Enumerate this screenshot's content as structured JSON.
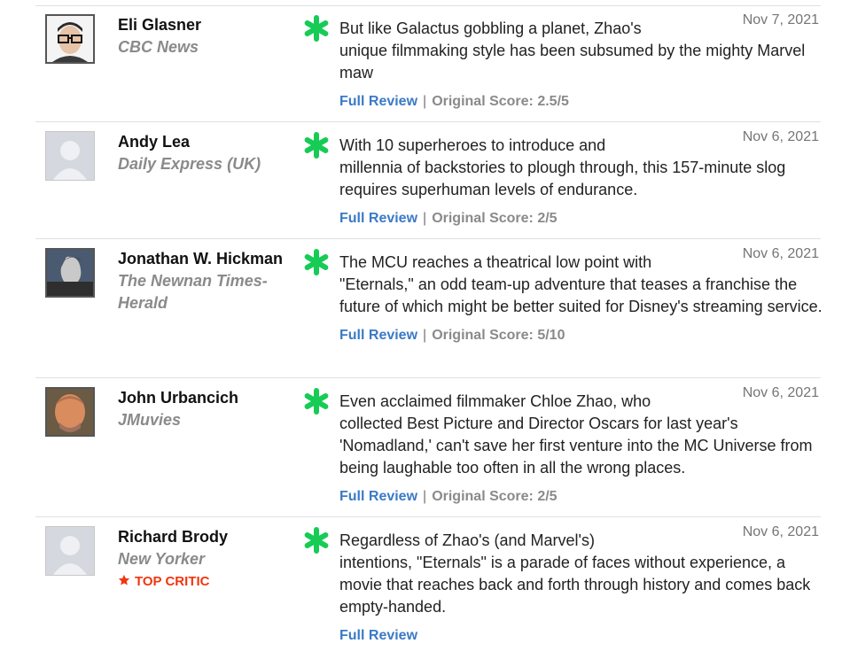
{
  "reviews": [
    {
      "critic": "Eli Glasner",
      "publication": "CBC News",
      "date": "Nov 7, 2021",
      "quote_first": "But like Galactus gobbling a planet, Zhao's",
      "quote_rest": "unique filmmaking style has been subsumed by the mighty Marvel maw",
      "full_review": "Full Review",
      "score_label": "Original Score: 2.5/5"
    },
    {
      "critic": "Andy Lea",
      "publication": "Daily Express (UK)",
      "date": "Nov 6, 2021",
      "quote_first": "With 10 superheroes to introduce and",
      "quote_rest": "millennia of backstories to plough through, this 157-minute slog requires superhuman levels of endurance.",
      "full_review": "Full Review",
      "score_label": "Original Score: 2/5"
    },
    {
      "critic": "Jonathan W. Hickman",
      "publication": "The Newnan Times-Herald",
      "date": "Nov 6, 2021",
      "quote_first": "The MCU reaches a theatrical low point with",
      "quote_rest": "\"Eternals,\" an odd team-up adventure that teases a franchise the future of which might be better suited for Disney's streaming service.",
      "full_review": "Full Review",
      "score_label": "Original Score: 5/10"
    },
    {
      "critic": "John Urbancich",
      "publication": "JMuvies",
      "date": "Nov 6, 2021",
      "quote_first": "Even acclaimed filmmaker Chloe Zhao, who",
      "quote_rest": "collected Best Picture and Director Oscars for last year's 'Nomadland,' can't save her first venture into the MC Universe from being laughable too often in all the wrong places.",
      "full_review": "Full Review",
      "score_label": "Original Score: 2/5"
    },
    {
      "critic": "Richard Brody",
      "publication": "New Yorker",
      "badge": "TOP CRITIC",
      "date": "Nov 6, 2021",
      "quote_first": "Regardless of Zhao's (and Marvel's)",
      "quote_rest": "intentions, \"Eternals\" is a parade of faces without experience, a movie that reaches back and forth through history and comes back empty-handed.",
      "full_review": "Full Review"
    }
  ],
  "icons": {
    "rating": "fresh-splat-icon",
    "avatar_placeholder": "user-silhouette-icon",
    "badge": "star-icon"
  },
  "colors": {
    "fresh": "#16cc55",
    "link": "#3a7ac7",
    "top_critic": "#f1360f"
  }
}
